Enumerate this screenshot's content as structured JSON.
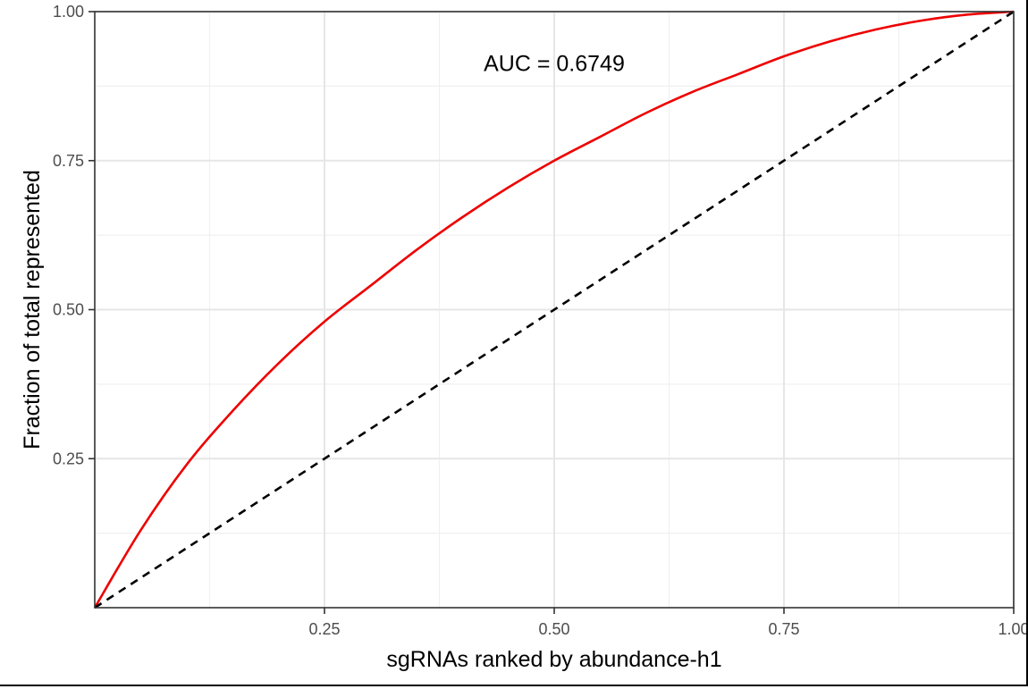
{
  "chart_data": {
    "type": "line",
    "xlabel": "sgRNAs ranked by abundance-h1",
    "ylabel": "Fraction of total represented",
    "xlim": [
      0,
      1
    ],
    "ylim": [
      0,
      1
    ],
    "x_ticks": [
      0.25,
      0.5,
      0.75,
      1.0
    ],
    "x_tick_labels": [
      "0.25",
      "0.50",
      "0.75",
      "1.00"
    ],
    "y_ticks": [
      0.25,
      0.5,
      0.75,
      1.0
    ],
    "y_tick_labels": [
      "0.25",
      "0.50",
      "0.75",
      "1.00"
    ],
    "grid": true,
    "annotation": "AUC = 0.6749",
    "series": [
      {
        "style": "solid",
        "color": "#ee0000",
        "x": [
          0,
          0.05,
          0.1,
          0.15,
          0.2,
          0.25,
          0.3,
          0.35,
          0.4,
          0.45,
          0.5,
          0.55,
          0.6,
          0.65,
          0.7,
          0.75,
          0.8,
          0.85,
          0.9,
          0.95,
          1.0
        ],
        "y": [
          0,
          0.13,
          0.24,
          0.33,
          0.41,
          0.48,
          0.54,
          0.6,
          0.655,
          0.705,
          0.75,
          0.79,
          0.83,
          0.865,
          0.895,
          0.925,
          0.95,
          0.97,
          0.985,
          0.995,
          1.0
        ]
      },
      {
        "style": "dashed",
        "color": "#000000",
        "x": [
          0,
          1
        ],
        "y": [
          0,
          1
        ]
      }
    ]
  }
}
